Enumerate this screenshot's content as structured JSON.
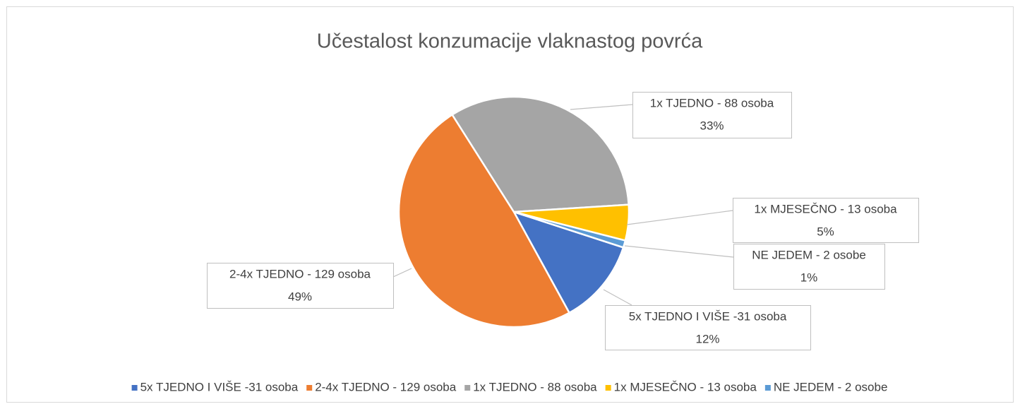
{
  "chart_data": {
    "type": "pie",
    "title": "Učestalost konzumacije vlaknastog povrća",
    "categories": [
      "5x TJEDNO I VIŠE -31 osoba",
      "2-4x TJEDNO - 129 osoba",
      "1x TJEDNO - 88 osoba",
      "1x MJESEČNO - 13 osoba",
      "NE JEDEM - 2 osobe"
    ],
    "values": [
      12,
      49,
      33,
      5,
      1
    ],
    "value_labels": [
      "12%",
      "49%",
      "33%",
      "5%",
      "1%"
    ],
    "colors": [
      "#4472c4",
      "#ed7d31",
      "#a5a5a5",
      "#ffc000",
      "#5b9bd5"
    ],
    "legend": "bottom"
  }
}
